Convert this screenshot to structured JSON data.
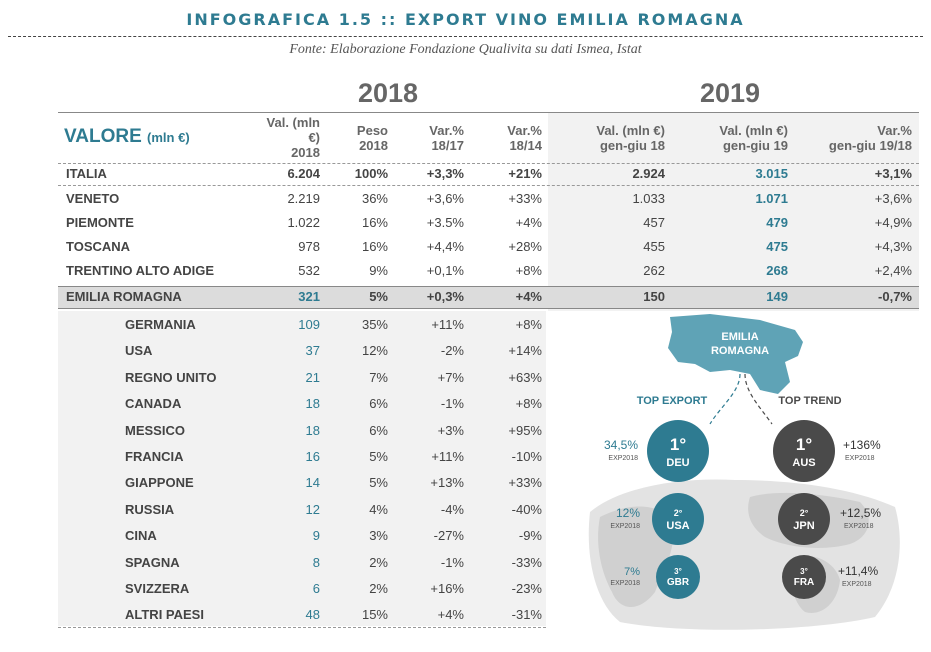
{
  "title": "INFOGRAFICA 1.5 :: EXPORT VINO EMILIA ROMAGNA",
  "source": "Fonte: Elaborazione Fondazione Qualivita su dati Ismea, Istat",
  "year_2018": "2018",
  "year_2019": "2019",
  "valore_main": "VALORE",
  "valore_unit": "(mln €)",
  "headers": {
    "val2018": [
      "Val. (mln",
      "€)",
      "2018"
    ],
    "peso": [
      "Peso",
      "2018"
    ],
    "var1817": [
      "Var.%",
      "18/17"
    ],
    "var1814": [
      "Var.%",
      "18/14"
    ],
    "val_gg18": [
      "Val. (mln €)",
      "gen-giu 18"
    ],
    "val_gg19": [
      "Val. (mln €)",
      "gen-giu 19"
    ],
    "var_gg": [
      "Var.%",
      "gen-giu 19/18"
    ]
  },
  "regions": [
    {
      "name": "ITALIA",
      "val2018": "6.204",
      "peso": "100%",
      "var1817": "+3,3%",
      "var1814": "+21%",
      "gg18": "2.924",
      "gg19": "3.015",
      "vargg": "+3,1%"
    },
    {
      "name": "VENETO",
      "val2018": "2.219",
      "peso": "36%",
      "var1817": "+3,6%",
      "var1814": "+33%",
      "gg18": "1.033",
      "gg19": "1.071",
      "vargg": "+3,6%"
    },
    {
      "name": "PIEMONTE",
      "val2018": "1.022",
      "peso": "16%",
      "var1817": "+3.5%",
      "var1814": "+4%",
      "gg18": "457",
      "gg19": "479",
      "vargg": "+4,9%"
    },
    {
      "name": "TOSCANA",
      "val2018": "978",
      "peso": "16%",
      "var1817": "+4,4%",
      "var1814": "+28%",
      "gg18": "455",
      "gg19": "475",
      "vargg": "+4,3%"
    },
    {
      "name": "TRENTINO ALTO ADIGE",
      "val2018": "532",
      "peso": "9%",
      "var1817": "+0,1%",
      "var1814": "+8%",
      "gg18": "262",
      "gg19": "268",
      "vargg": "+2,4%"
    },
    {
      "name": "EMILIA ROMAGNA",
      "val2018": "321",
      "peso": "5%",
      "var1817": "+0,3%",
      "var1814": "+4%",
      "gg18": "150",
      "gg19": "149",
      "vargg": "-0,7%"
    }
  ],
  "countries": [
    {
      "name": "GERMANIA",
      "val": "109",
      "peso": "35%",
      "v1": "+11%",
      "v2": "+8%"
    },
    {
      "name": "USA",
      "val": "37",
      "peso": "12%",
      "v1": "-2%",
      "v2": "+14%"
    },
    {
      "name": "REGNO UNITO",
      "val": "21",
      "peso": "7%",
      "v1": "+7%",
      "v2": "+63%"
    },
    {
      "name": "CANADA",
      "val": "18",
      "peso": "6%",
      "v1": "-1%",
      "v2": "+8%"
    },
    {
      "name": "MESSICO",
      "val": "18",
      "peso": "6%",
      "v1": "+3%",
      "v2": "+95%"
    },
    {
      "name": "FRANCIA",
      "val": "16",
      "peso": "5%",
      "v1": "+11%",
      "v2": "-10%"
    },
    {
      "name": "GIAPPONE",
      "val": "14",
      "peso": "5%",
      "v1": "+13%",
      "v2": "+33%"
    },
    {
      "name": "RUSSIA",
      "val": "12",
      "peso": "4%",
      "v1": "-4%",
      "v2": "-40%"
    },
    {
      "name": "CINA",
      "val": "9",
      "peso": "3%",
      "v1": "-27%",
      "v2": "-9%"
    },
    {
      "name": "SPAGNA",
      "val": "8",
      "peso": "2%",
      "v1": "-1%",
      "v2": "-33%"
    },
    {
      "name": "SVIZZERA",
      "val": "6",
      "peso": "2%",
      "v1": "+16%",
      "v2": "-23%"
    },
    {
      "name": "ALTRI PAESI",
      "val": "48",
      "peso": "15%",
      "v1": "+4%",
      "v2": "-31%"
    }
  ],
  "infographic": {
    "region_label": [
      "EMILIA",
      "ROMAGNA"
    ],
    "top_export": "TOP EXPORT",
    "top_trend": "TOP TREND",
    "exp_tag": "EXP2018",
    "export": [
      {
        "rank": "1°",
        "code": "DEU",
        "share": "34,5%"
      },
      {
        "rank": "2°",
        "code": "USA",
        "share": "12%"
      },
      {
        "rank": "3°",
        "code": "GBR",
        "share": "7%"
      }
    ],
    "trend": [
      {
        "rank": "1°",
        "code": "AUS",
        "growth": "+136%"
      },
      {
        "rank": "2°",
        "code": "JPN",
        "growth": "+12,5%"
      },
      {
        "rank": "3°",
        "code": "FRA",
        "growth": "+11,4%"
      }
    ],
    "colors": {
      "teal": "#2e7b91",
      "teal_light": "#5fa3b6",
      "dark": "#4a4a4a",
      "map": "#d9d9d9"
    }
  }
}
